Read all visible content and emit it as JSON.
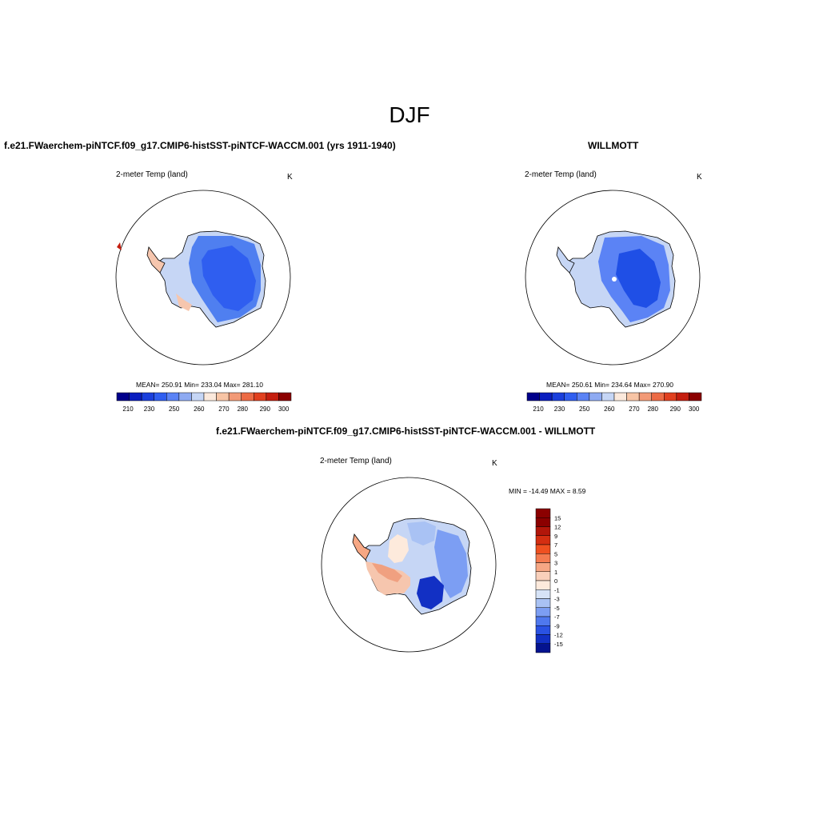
{
  "page": {
    "title": "DJF"
  },
  "panels": {
    "model": {
      "title": "f.e21.FWaerchem-piNTCF.f09_g17.CMIP6-histSST-piNTCF-WACCM.001 (yrs 1911-1940)",
      "variable": "2-meter Temp (land)",
      "units": "K",
      "stats": "MEAN= 250.91  Min= 233.04  Max= 281.10",
      "colorbar_labels": [
        "210",
        "230",
        "250",
        "260",
        "270",
        "280",
        "290",
        "300"
      ]
    },
    "obs": {
      "title": "WILLMOTT",
      "variable": "2-meter Temp (land)",
      "units": "K",
      "stats": "MEAN= 250.61  Min= 234.64  Max= 270.90",
      "colorbar_labels": [
        "210",
        "230",
        "250",
        "260",
        "270",
        "280",
        "290",
        "300"
      ]
    },
    "diff": {
      "title": "f.e21.FWaerchem-piNTCF.f09_g17.CMIP6-histSST-piNTCF-WACCM.001 - WILLMOTT",
      "variable": "2-meter Temp (land)",
      "units": "K",
      "stats": "MIN = -14.49 MAX =   8.59",
      "colorbar_labels": [
        "15",
        "12",
        "9",
        "7",
        "5",
        "3",
        "1",
        "0",
        "-1",
        "-3",
        "-5",
        "-7",
        "-9",
        "-12",
        "-15"
      ]
    }
  },
  "colors": {
    "abs_scale": [
      "#00008b",
      "#0a1ebf",
      "#1a3fdc",
      "#2f5ef0",
      "#5b83f5",
      "#8eaaf2",
      "#c6d6f5",
      "#fbe9dc",
      "#f7c4a5",
      "#f29a77",
      "#ec6b45",
      "#e1401f",
      "#c41e0f",
      "#8b0000"
    ],
    "diff_scale": [
      "#8b0000",
      "#b2160a",
      "#d42e11",
      "#ef5020",
      "#f47b50",
      "#f6a784",
      "#f9d0bb",
      "#fdeadc",
      "#d6e3f7",
      "#a9c2f4",
      "#7c9ef3",
      "#4f78ee",
      "#2a52e3",
      "#1230c4",
      "#04138f"
    ],
    "ice_deep": "#1f4fe6",
    "ice_mid": "#4f7ff0",
    "ice_light": "#c6d6f5",
    "warm_light": "#f6c6ae",
    "warm": "#f0a080"
  }
}
